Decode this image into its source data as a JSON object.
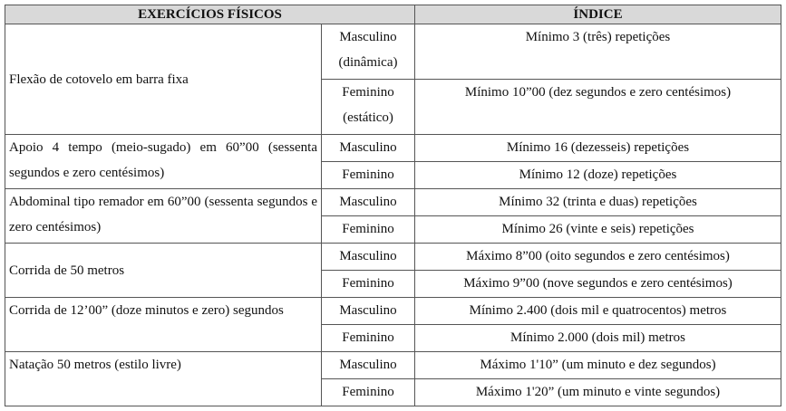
{
  "table": {
    "header": [
      "EXERCÍCIOS FÍSICOS",
      "ÍNDICE"
    ],
    "rows": [
      {
        "exercise": "Flexão de cotovelo em barra fixa",
        "entries": [
          {
            "gender": "Masculino (dinâmica)",
            "index": "Mínimo 3 (três) repetições"
          },
          {
            "gender": "Feminino (estático)",
            "index": "Mínimo 10”00 (dez segundos e zero centésimos)"
          }
        ]
      },
      {
        "exercise": "Apoio 4 tempo (meio-sugado) em 60”00 (sessenta segundos e zero centésimos)",
        "entries": [
          {
            "gender": "Masculino",
            "index": "Mínimo 16 (dezesseis) repetições"
          },
          {
            "gender": "Feminino",
            "index": "Mínimo 12 (doze) repetições"
          }
        ]
      },
      {
        "exercise": "Abdominal tipo remador em 60”00 (sessenta segundos e zero centésimos)",
        "entries": [
          {
            "gender": "Masculino",
            "index": "Mínimo 32 (trinta e duas) repetições"
          },
          {
            "gender": "Feminino",
            "index": "Mínimo 26 (vinte e seis) repetições"
          }
        ]
      },
      {
        "exercise": "Corrida de 50 metros",
        "entries": [
          {
            "gender": "Masculino",
            "index": "Máximo 8”00 (oito segundos e zero centésimos)"
          },
          {
            "gender": "Feminino",
            "index": "Máximo 9”00 (nove segundos e zero centésimos)"
          }
        ]
      },
      {
        "exercise": "Corrida de 12’00” (doze minutos e zero) segundos",
        "entries": [
          {
            "gender": "Masculino",
            "index": "Mínimo 2.400 (dois mil e quatrocentos) metros"
          },
          {
            "gender": "Feminino",
            "index": "Mínimo 2.000 (dois mil) metros"
          }
        ]
      },
      {
        "exercise": "Natação 50 metros (estilo livre)",
        "entries": [
          {
            "gender": "Masculino",
            "index": "Máximo 1'10” (um minuto e dez segundos)"
          },
          {
            "gender": "Feminino",
            "index": "Máximo 1'20” (um minuto e  vinte segundos)"
          }
        ]
      }
    ]
  }
}
